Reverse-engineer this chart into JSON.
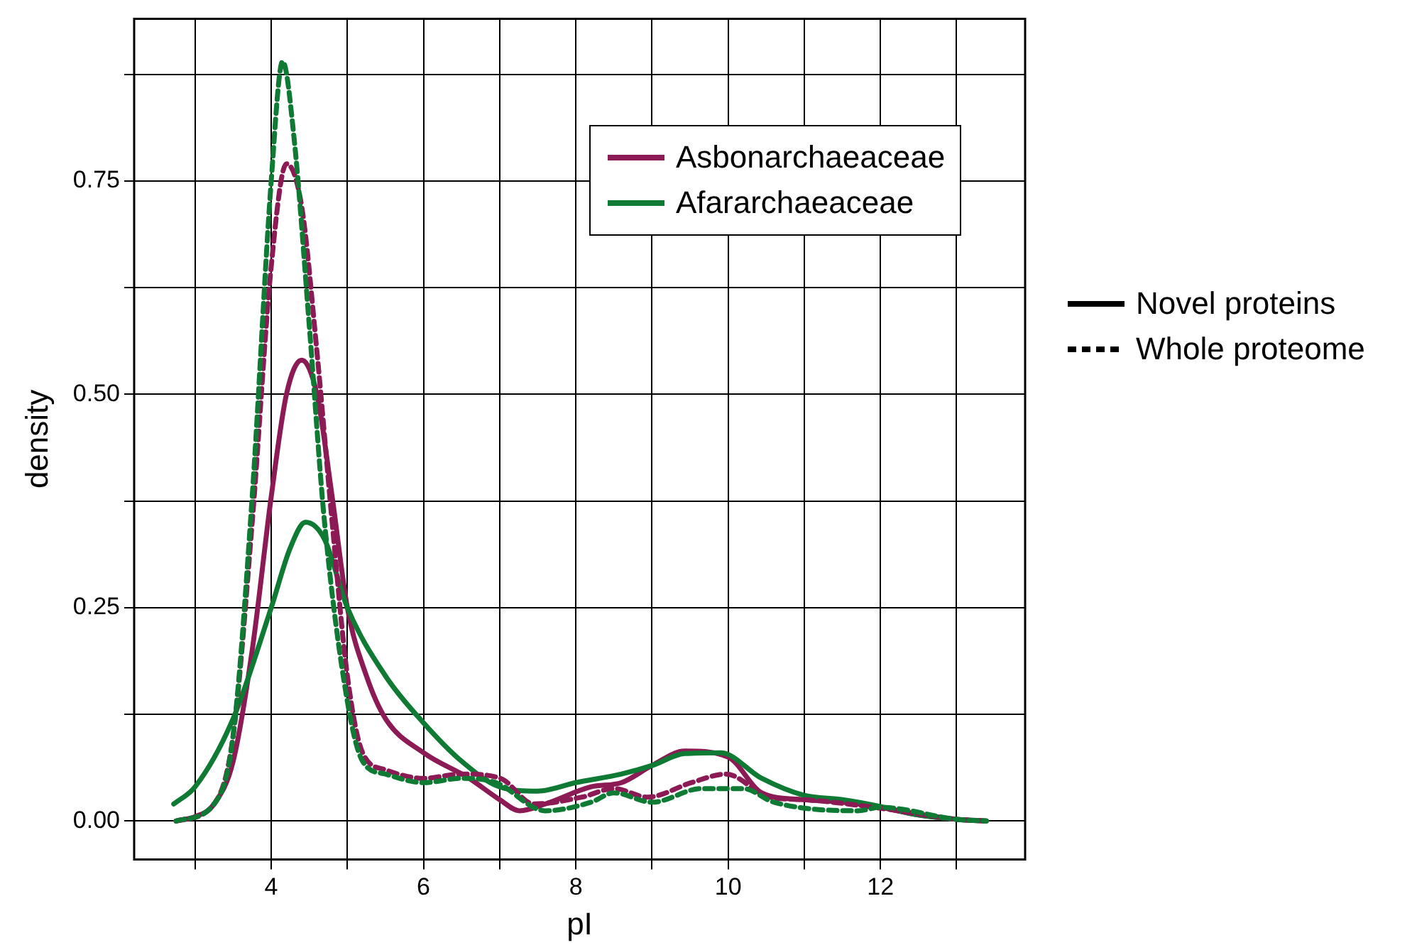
{
  "chart_data": {
    "type": "line",
    "xlabel": "pI",
    "ylabel": "density",
    "xlim": [
      2.2,
      13.9
    ],
    "ylim": [
      -0.045,
      0.94
    ],
    "xticks": [
      {
        "value": 3,
        "label": null
      },
      4,
      {
        "value": 5,
        "label": null
      },
      6,
      {
        "value": 7,
        "label": null
      },
      8,
      {
        "value": 9,
        "label": null
      },
      10,
      {
        "value": 11,
        "label": null
      },
      12,
      {
        "value": 13,
        "label": null
      }
    ],
    "yticks": [
      {
        "value": 0,
        "label": "0.00"
      },
      {
        "value": 0.125,
        "label": null
      },
      {
        "value": 0.25,
        "label": "0.25"
      },
      {
        "value": 0.375,
        "label": null
      },
      {
        "value": 0.5,
        "label": "0.50"
      },
      {
        "value": 0.625,
        "label": null
      },
      {
        "value": 0.75,
        "label": "0.75"
      },
      {
        "value": 0.875,
        "label": null
      }
    ],
    "grid": true,
    "legend": "top right",
    "marker": "none",
    "annotations": [
      "Novel proteins",
      "Whole proteome"
    ],
    "series": [
      {
        "name": "Asbonarchaeaceae",
        "color": "#8b1a55",
        "line_style": "solid",
        "x": [
          2.75,
          3,
          3.25,
          3.5,
          3.75,
          4,
          4.2,
          4.4,
          4.6,
          4.8,
          5,
          5.25,
          5.5,
          6,
          6.6,
          7,
          7.26,
          7.6,
          8.2,
          8.6,
          9,
          9.43,
          10,
          10.44,
          11,
          11.5,
          12,
          12.5,
          13,
          13.39
        ],
        "values": [
          0,
          0.005,
          0.02,
          0.07,
          0.2,
          0.38,
          0.5,
          0.54,
          0.5,
          0.38,
          0.25,
          0.17,
          0.12,
          0.08,
          0.05,
          0.025,
          0.012,
          0.02,
          0.04,
          0.045,
          0.065,
          0.082,
          0.075,
          0.033,
          0.025,
          0.022,
          0.016,
          0.007,
          0.002,
          0
        ]
      },
      {
        "name": "Afararchaeaceae",
        "color": "#0e7a34",
        "line_style": "solid",
        "x": [
          2.72,
          3,
          3.5,
          4,
          4.25,
          4.45,
          4.7,
          5,
          5.5,
          6,
          6.5,
          7,
          7.5,
          8,
          8.6,
          9,
          9.43,
          9.9,
          10.44,
          11,
          11.5,
          12,
          12.5,
          13,
          13.39
        ],
        "values": [
          0.02,
          0.04,
          0.12,
          0.25,
          0.32,
          0.35,
          0.33,
          0.25,
          0.17,
          0.115,
          0.07,
          0.04,
          0.035,
          0.045,
          0.055,
          0.065,
          0.079,
          0.08,
          0.05,
          0.03,
          0.025,
          0.017,
          0.007,
          0.002,
          0
        ]
      },
      {
        "color": "#8b1a55",
        "line_style": "dashed",
        "x": [
          2.75,
          3.25,
          3.5,
          3.75,
          4,
          4.2,
          4.4,
          4.6,
          4.8,
          5,
          5.2,
          5.5,
          6,
          6.5,
          7.01,
          7.45,
          8.08,
          8.5,
          8.94,
          9.52,
          9.97,
          10.54,
          11,
          12,
          13,
          13.39
        ],
        "values": [
          0,
          0.02,
          0.1,
          0.35,
          0.65,
          0.77,
          0.72,
          0.55,
          0.35,
          0.17,
          0.08,
          0.06,
          0.05,
          0.055,
          0.05,
          0.02,
          0.028,
          0.038,
          0.028,
          0.045,
          0.055,
          0.028,
          0.025,
          0.015,
          0.002,
          0
        ]
      },
      {
        "color": "#0e7a34",
        "line_style": "dashed",
        "x": [
          2.75,
          3.25,
          3.5,
          3.75,
          4,
          4.15,
          4.3,
          4.5,
          4.7,
          5,
          5.2,
          5.5,
          6,
          6.5,
          6.95,
          7.6,
          8.2,
          8.5,
          9,
          9.65,
          10.2,
          10.6,
          11.7,
          12,
          13,
          13.39
        ],
        "values": [
          0,
          0.02,
          0.1,
          0.38,
          0.75,
          0.89,
          0.8,
          0.58,
          0.35,
          0.14,
          0.07,
          0.055,
          0.045,
          0.05,
          0.045,
          0.012,
          0.022,
          0.033,
          0.022,
          0.038,
          0.038,
          0.022,
          0.012,
          0.016,
          0.002,
          0
        ]
      }
    ]
  }
}
